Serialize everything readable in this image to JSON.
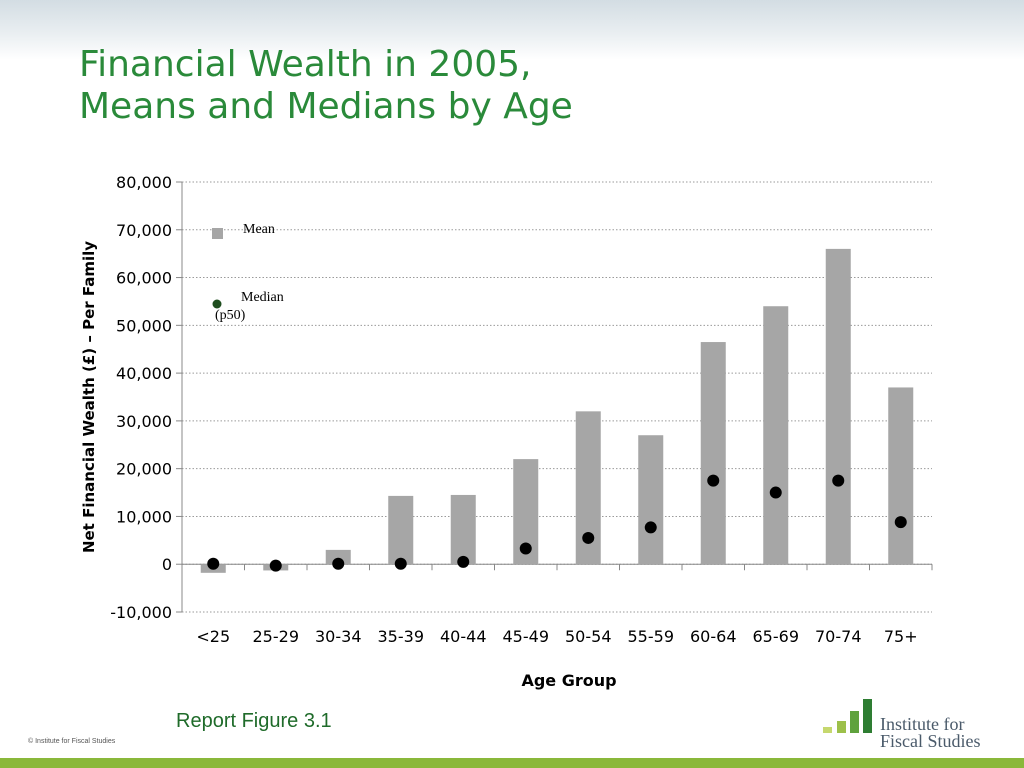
{
  "slide": {
    "title_line1": "Financial Wealth in 2005,",
    "title_line2": "Means and Medians by Age",
    "footer_reference": "Report Figure 3.1",
    "copyright": "© Institute for Fiscal Studies",
    "logo": {
      "line1": "Institute for",
      "line2": "Fiscal Studies",
      "bar_colors": [
        "#c6d86e",
        "#9dc04a",
        "#5fa23d",
        "#2e7d32"
      ]
    },
    "colors": {
      "title": "#2a8a3a",
      "bottom_band": "#8ab83a",
      "mean_bar": "#a6a6a6",
      "median_marker": "#000000",
      "legend_median_marker": "#1e4d1e"
    }
  },
  "chart_data": {
    "type": "bar",
    "xlabel": "Age Group",
    "ylabel": "Net Financial Wealth (£) – Per Family",
    "ylim": [
      -10000,
      80000
    ],
    "y_ticks": [
      -10000,
      0,
      10000,
      20000,
      30000,
      40000,
      50000,
      60000,
      70000,
      80000
    ],
    "y_tick_labels": [
      "-10,000",
      "0",
      "10,000",
      "20,000",
      "30,000",
      "40,000",
      "50,000",
      "60,000",
      "70,000",
      "80,000"
    ],
    "grid": "horizontal dotted",
    "legend_position": "top-left inside plot",
    "categories": [
      "<25",
      "25-29",
      "30-34",
      "35-39",
      "40-44",
      "45-49",
      "50-54",
      "55-59",
      "60-64",
      "65-69",
      "70-74",
      "75+"
    ],
    "series": [
      {
        "name": "Mean",
        "kind": "bar",
        "color": "#a6a6a6",
        "values": [
          -1800,
          -1300,
          3000,
          14300,
          14500,
          22000,
          32000,
          27000,
          46500,
          54000,
          66000,
          37000
        ]
      },
      {
        "name": "Median",
        "name_line2": "(p50)",
        "kind": "marker",
        "color": "#000000",
        "values": [
          100,
          -300,
          100,
          100,
          500,
          3300,
          5500,
          7700,
          17500,
          15000,
          17500,
          8800
        ]
      }
    ]
  }
}
